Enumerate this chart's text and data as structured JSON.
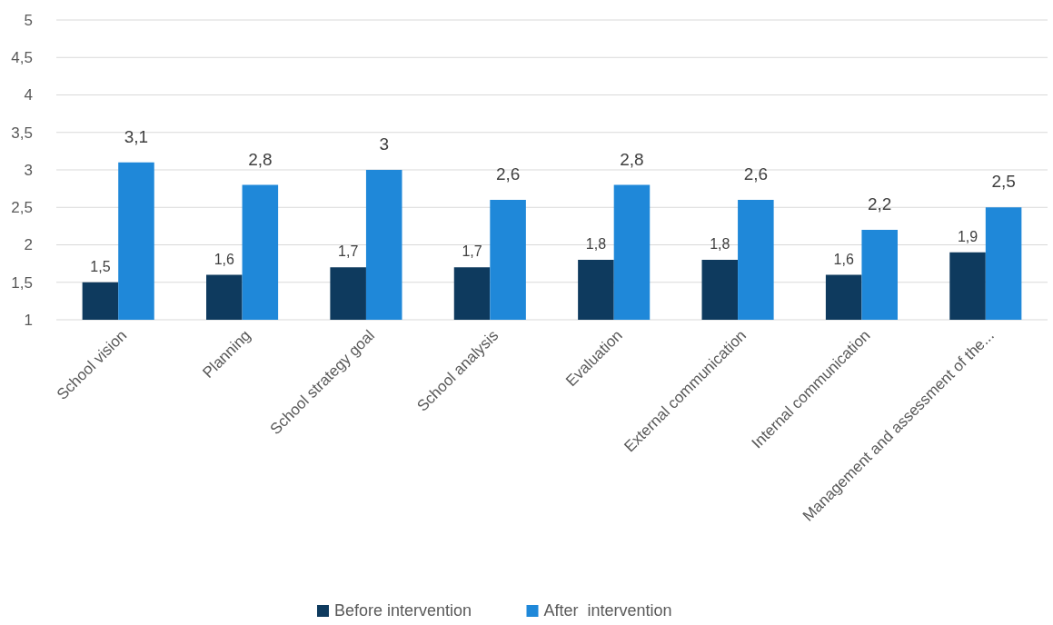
{
  "chart_data": {
    "type": "bar",
    "categories": [
      "School vision",
      "Planning",
      "School strategy goal",
      "School analysis",
      "Evaluation",
      "External communication",
      "Internal communication",
      "Management and assessment of the..."
    ],
    "series": [
      {
        "name": "Before intervention",
        "color": "#0e3a5e",
        "values": [
          1.5,
          1.6,
          1.7,
          1.7,
          1.8,
          1.8,
          1.6,
          1.9
        ],
        "value_labels": [
          "1,5",
          "1,6",
          "1,7",
          "1,7",
          "1,8",
          "1,8",
          "1,6",
          "1,9"
        ]
      },
      {
        "name": "After  intervention",
        "color": "#1f88d9",
        "values": [
          3.1,
          2.8,
          3,
          2.6,
          2.8,
          2.6,
          2.2,
          2.5
        ],
        "value_labels": [
          "3,1",
          "2,8",
          "3",
          "2,6",
          "2,8",
          "2,6",
          "2,2",
          "2,5"
        ]
      }
    ],
    "ylim": [
      1,
      5
    ],
    "yticks": [
      1,
      {
        "value": 1.5,
        "label": "1,5"
      },
      2,
      {
        "value": 2.5,
        "label": "2,5"
      },
      3,
      {
        "value": 3.5,
        "label": "3,5"
      },
      4,
      {
        "value": 4.5,
        "label": "4,5"
      },
      5
    ],
    "grid": "y",
    "legend": "bottom"
  }
}
